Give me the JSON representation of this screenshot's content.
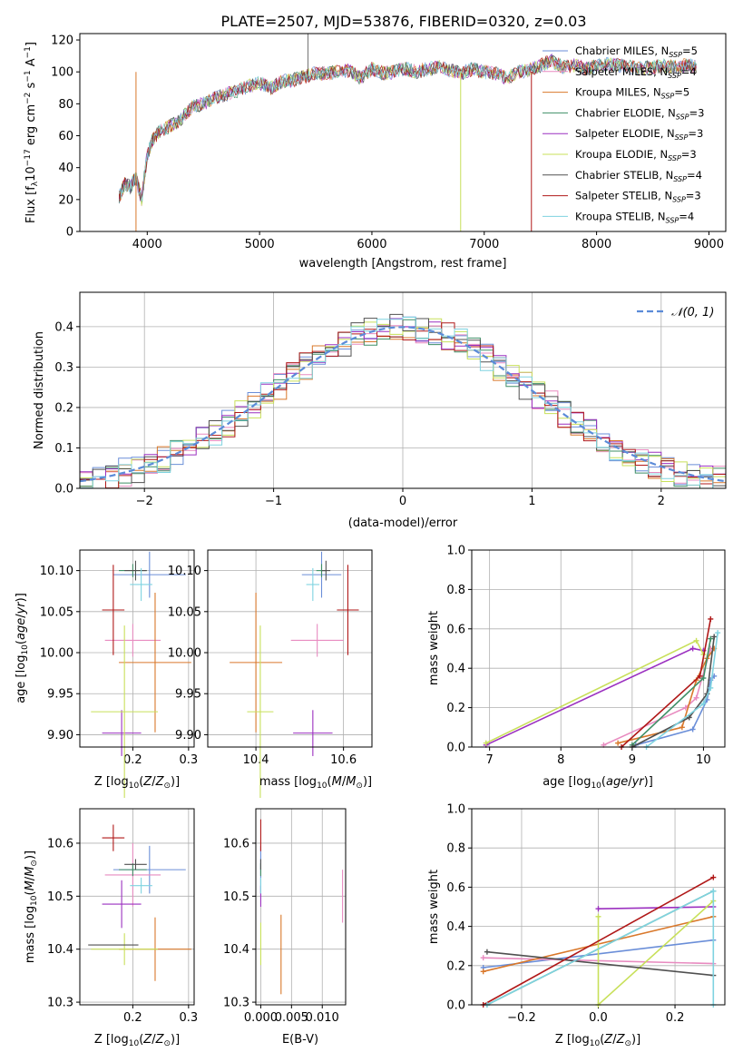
{
  "figure": {
    "title": "PLATE=2507, MJD=53876, FIBERID=0320, z=0.03"
  },
  "chart_data": [
    {
      "type": "line",
      "xlabel": "wavelength [Angstrom, rest frame]",
      "ylabel": "Flux [f_λ10^-17 erg cm^-2 s^-1 A^-1]",
      "xlim": [
        3400,
        9150
      ],
      "ylim": [
        0,
        124
      ],
      "xticks": [
        4000,
        5000,
        6000,
        7000,
        8000,
        9000
      ],
      "yticks": [
        0,
        20,
        40,
        60,
        80,
        100,
        120
      ],
      "legend_position": "top-right",
      "series": [
        {
          "name": "Chabrier MILES, N_SSP=5",
          "color": "#6a8ed8"
        },
        {
          "name": "Salpeter MILES, N_SSP=4",
          "color": "#e88bc0"
        },
        {
          "name": "Kroupa MILES, N_SSP=5",
          "color": "#d9782b"
        },
        {
          "name": "Chabrier ELODIE, N_SSP=3",
          "color": "#3f8f66"
        },
        {
          "name": "Salpeter ELODIE, N_SSP=3",
          "color": "#9b30c0"
        },
        {
          "name": "Kroupa ELODIE, N_SSP=3",
          "color": "#c8e05a"
        },
        {
          "name": "Chabrier STELIB, N_SSP=4",
          "color": "#505050"
        },
        {
          "name": "Salpeter STELIB, N_SSP=3",
          "color": "#b01818"
        },
        {
          "name": "Kroupa STELIB, N_SSP=4",
          "color": "#7fd3e0"
        }
      ],
      "x": [
        3750,
        3800,
        3850,
        3900,
        3950,
        4000,
        4050,
        4100,
        4200,
        4300,
        4400,
        4500,
        4600,
        4700,
        4800,
        4900,
        5000,
        5100,
        5200,
        5300,
        5400,
        5500,
        5600,
        5700,
        5800,
        5900,
        6000,
        6100,
        6200,
        6300,
        6400,
        6500,
        6600,
        6700,
        6800,
        6900,
        7000,
        7100,
        7200,
        7300,
        7400,
        7500,
        7600,
        7700,
        7800,
        7900,
        8000,
        8100,
        8200,
        8300,
        8400,
        8500,
        8600,
        8700,
        8800,
        8900
      ],
      "y": [
        22,
        30,
        28,
        34,
        20,
        48,
        58,
        62,
        66,
        70,
        78,
        80,
        84,
        86,
        88,
        91,
        93,
        90,
        94,
        95,
        97,
        99,
        99,
        100,
        101,
        96,
        102,
        99,
        100,
        102,
        100,
        102,
        103,
        101,
        99,
        102,
        100,
        99,
        96,
        100,
        101,
        104,
        107,
        103,
        104,
        102,
        104,
        105,
        104,
        103,
        102,
        103,
        104,
        103,
        104,
        103
      ],
      "drops": [
        {
          "series": "Kroupa ELODIE, N_SSP=3",
          "x": 6790,
          "y": 0
        },
        {
          "series": "Salpeter STELIB, N_SSP=3",
          "x": 7420,
          "y": 0
        },
        {
          "series": "Kroupa MILES, N_SSP=5",
          "x": 3900,
          "y": 0
        }
      ]
    },
    {
      "type": "bar",
      "xlabel": "(data-model)/error",
      "ylabel": "Normed distribution",
      "xlim": [
        -2.5,
        2.5
      ],
      "ylim": [
        0,
        0.485
      ],
      "xticks": [
        -2,
        -1,
        0,
        1,
        2
      ],
      "yticks": [
        0.0,
        0.1,
        0.2,
        0.3,
        0.4
      ],
      "grid": true,
      "legend_position": "top-right",
      "legend": "𝒩(0, 1)",
      "bins": [
        -2.5,
        -2.4,
        -2.3,
        -2.2,
        -2.1,
        -2.0,
        -1.9,
        -1.8,
        -1.7,
        -1.6,
        -1.5,
        -1.4,
        -1.3,
        -1.2,
        -1.1,
        -1.0,
        -0.9,
        -0.8,
        -0.7,
        -0.6,
        -0.5,
        -0.4,
        -0.3,
        -0.2,
        -0.1,
        0.0,
        0.1,
        0.2,
        0.3,
        0.4,
        0.5,
        0.6,
        0.7,
        0.8,
        0.9,
        1.0,
        1.1,
        1.2,
        1.3,
        1.4,
        1.5,
        1.6,
        1.7,
        1.8,
        1.9,
        2.0,
        2.1,
        2.2,
        2.3,
        2.4
      ],
      "normal_curve": {
        "mean": 0,
        "std": 1,
        "color": "#5b8bd8"
      }
    },
    {
      "type": "scatter",
      "xlabel": "Z [log10(Z/Z⊙)]",
      "ylabel": "age  [log10(age/yr)]",
      "xlim": [
        0.105,
        0.31
      ],
      "ylim": [
        9.885,
        10.125
      ],
      "xticks": [
        0.2,
        0.3
      ],
      "yticks": [
        9.9,
        9.95,
        10.0,
        10.05,
        10.1
      ],
      "points": [
        {
          "x": 0.23,
          "y": 10.095,
          "xerr": 0.065,
          "yerr": 0.028,
          "color": "#6a8ed8"
        },
        {
          "x": 0.2,
          "y": 10.015,
          "xerr": 0.05,
          "yerr": 0.02,
          "color": "#e88bc0"
        },
        {
          "x": 0.24,
          "y": 9.988,
          "xerr": 0.065,
          "yerr": 0.085,
          "color": "#d9782b"
        },
        {
          "x": 0.2,
          "y": 10.1,
          "xerr": 0.025,
          "yerr": 0.008,
          "color": "#3f8f66"
        },
        {
          "x": 0.18,
          "y": 9.902,
          "xerr": 0.035,
          "yerr": 0.028,
          "color": "#9b30c0"
        },
        {
          "x": 0.185,
          "y": 9.928,
          "xerr": 0.06,
          "yerr": 0.105,
          "color": "#c8e05a"
        },
        {
          "x": 0.205,
          "y": 10.1,
          "xerr": 0.02,
          "yerr": 0.012,
          "color": "#505050"
        },
        {
          "x": 0.165,
          "y": 10.052,
          "xerr": 0.02,
          "yerr": 0.055,
          "color": "#b01818"
        },
        {
          "x": 0.215,
          "y": 10.083,
          "xerr": 0.02,
          "yerr": 0.02,
          "color": "#7fd3e0"
        }
      ]
    },
    {
      "type": "scatter",
      "xlabel": "mass [log10(M/M⊙)]",
      "ylabel": "",
      "xlim": [
        10.29,
        10.665
      ],
      "ylim": [
        9.885,
        10.125
      ],
      "xticks": [
        10.4,
        10.6
      ],
      "yticks": [
        9.9,
        9.95,
        10.0,
        10.05,
        10.1
      ],
      "points": [
        {
          "x": 10.55,
          "y": 10.095,
          "xerr": 0.045,
          "yerr": 0.028,
          "color": "#6a8ed8"
        },
        {
          "x": 10.54,
          "y": 10.015,
          "xerr": 0.06,
          "yerr": 0.02,
          "color": "#e88bc0"
        },
        {
          "x": 10.4,
          "y": 9.988,
          "xerr": 0.06,
          "yerr": 0.085,
          "color": "#d9782b"
        },
        {
          "x": 10.55,
          "y": 10.1,
          "xerr": 0.012,
          "yerr": 0.008,
          "color": "#3f8f66"
        },
        {
          "x": 10.53,
          "y": 9.902,
          "xerr": 0.045,
          "yerr": 0.028,
          "color": "#9b30c0"
        },
        {
          "x": 10.41,
          "y": 9.928,
          "xerr": 0.03,
          "yerr": 0.105,
          "color": "#c8e05a"
        },
        {
          "x": 10.56,
          "y": 10.1,
          "xerr": 0.01,
          "yerr": 0.012,
          "color": "#505050"
        },
        {
          "x": 10.61,
          "y": 10.052,
          "xerr": 0.025,
          "yerr": 0.055,
          "color": "#b01818"
        },
        {
          "x": 10.53,
          "y": 10.083,
          "xerr": 0.015,
          "yerr": 0.02,
          "color": "#7fd3e0"
        }
      ]
    },
    {
      "type": "line",
      "xlabel": "age  [log10(age/yr)]",
      "ylabel": "mass weight",
      "xlim": [
        6.75,
        10.3
      ],
      "ylim": [
        0,
        1.0
      ],
      "xticks": [
        7,
        8,
        9,
        10
      ],
      "yticks": [
        0.0,
        0.2,
        0.4,
        0.6,
        0.8,
        1.0
      ],
      "grid": true,
      "series": [
        {
          "name": "Chabrier MILES, N_SSP=5",
          "color": "#6a8ed8",
          "x": [
            9.05,
            9.85,
            10.05,
            10.1,
            10.15
          ],
          "y": [
            0.01,
            0.09,
            0.24,
            0.34,
            0.36
          ]
        },
        {
          "name": "Salpeter MILES, N_SSP=4",
          "color": "#e88bc0",
          "x": [
            8.6,
            9.75,
            9.9,
            10.1
          ],
          "y": [
            0.01,
            0.2,
            0.25,
            0.5
          ]
        },
        {
          "name": "Kroupa MILES, N_SSP=5",
          "color": "#d9782b",
          "x": [
            8.8,
            9.7,
            9.9,
            10.05,
            10.15
          ],
          "y": [
            0.02,
            0.1,
            0.34,
            0.45,
            0.5
          ]
        },
        {
          "name": "Chabrier ELODIE, N_SSP=3",
          "color": "#3f8f66",
          "x": [
            9.0,
            10.0,
            10.1
          ],
          "y": [
            0.01,
            0.35,
            0.55
          ]
        },
        {
          "name": "Salpeter ELODIE, N_SSP=3",
          "color": "#9b30c0",
          "x": [
            6.95,
            9.85,
            10.0
          ],
          "y": [
            0.01,
            0.5,
            0.49
          ]
        },
        {
          "name": "Kroupa ELODIE, N_SSP=3",
          "color": "#c8e05a",
          "x": [
            6.95,
            9.9,
            10.0
          ],
          "y": [
            0.02,
            0.54,
            0.47
          ]
        },
        {
          "name": "Chabrier STELIB, N_SSP=4",
          "color": "#505050",
          "x": [
            9.0,
            9.8,
            10.05,
            10.15
          ],
          "y": [
            0.0,
            0.15,
            0.27,
            0.56
          ]
        },
        {
          "name": "Salpeter STELIB, N_SSP=3",
          "color": "#b01818",
          "x": [
            8.85,
            9.95,
            10.1
          ],
          "y": [
            0.0,
            0.36,
            0.65
          ]
        },
        {
          "name": "Kroupa STELIB, N_SSP=4",
          "color": "#7fd3e0",
          "x": [
            9.2,
            10.0,
            10.1,
            10.2
          ],
          "y": [
            0.0,
            0.22,
            0.3,
            0.58
          ]
        }
      ]
    },
    {
      "type": "scatter",
      "xlabel": "Z [log10(Z/Z⊙)]",
      "ylabel": "mass [log10(M/M⊙)]",
      "xlim": [
        0.105,
        0.31
      ],
      "ylim": [
        10.295,
        10.665
      ],
      "xticks": [
        0.2,
        0.3
      ],
      "yticks": [
        10.3,
        10.4,
        10.5,
        10.6
      ],
      "points": [
        {
          "x": 0.23,
          "y": 10.55,
          "xerr": 0.065,
          "yerr": 0.045,
          "color": "#6a8ed8"
        },
        {
          "x": 0.2,
          "y": 10.54,
          "xerr": 0.05,
          "yerr": 0.06,
          "color": "#e88bc0"
        },
        {
          "x": 0.24,
          "y": 10.4,
          "xerr": 0.065,
          "yerr": 0.06,
          "color": "#d9782b"
        },
        {
          "x": 0.2,
          "y": 10.55,
          "xerr": 0.025,
          "yerr": 0.012,
          "color": "#3f8f66"
        },
        {
          "x": 0.18,
          "y": 10.485,
          "xerr": 0.035,
          "yerr": 0.045,
          "color": "#9b30c0"
        },
        {
          "x": 0.185,
          "y": 10.4,
          "xerr": 0.06,
          "yerr": 0.03,
          "color": "#c8e05a"
        },
        {
          "x": 0.205,
          "y": 10.56,
          "xerr": 0.02,
          "yerr": 0.01,
          "color": "#505050"
        },
        {
          "x": 0.165,
          "y": 10.61,
          "xerr": 0.02,
          "yerr": 0.025,
          "color": "#b01818"
        },
        {
          "x": 0.215,
          "y": 10.52,
          "xerr": 0.02,
          "yerr": 0.015,
          "color": "#7fd3e0"
        },
        {
          "x": 0.165,
          "y": 10.408,
          "xerr": 0.045,
          "yerr": 0.0,
          "color": "#505050"
        }
      ]
    },
    {
      "type": "scatter",
      "xlabel": "E(B-V)",
      "ylabel": "",
      "xlim": [
        -0.0008,
        0.0138
      ],
      "ylim": [
        10.295,
        10.665
      ],
      "xticks": [
        0.0,
        0.005,
        0.01
      ],
      "xticklabels": [
        "0.000",
        "0.005",
        "0.010"
      ],
      "yticks": [
        10.3,
        10.4,
        10.5,
        10.6
      ],
      "points": [
        {
          "x": 0.0,
          "y": 10.55,
          "xerr": 0.0,
          "yerr": 0.045,
          "color": "#6a8ed8"
        },
        {
          "x": 0.0133,
          "y": 10.5,
          "xerr": 0.0,
          "yerr": 0.05,
          "color": "#e88bc0"
        },
        {
          "x": 0.0033,
          "y": 10.39,
          "xerr": 0.0,
          "yerr": 0.075,
          "color": "#d9782b"
        },
        {
          "x": 0.0,
          "y": 10.55,
          "xerr": 0.0,
          "yerr": 0.012,
          "color": "#3f8f66"
        },
        {
          "x": 0.0,
          "y": 10.5,
          "xerr": 0.0,
          "yerr": 0.02,
          "color": "#9b30c0"
        },
        {
          "x": 0.0,
          "y": 10.41,
          "xerr": 0.0,
          "yerr": 0.04,
          "color": "#c8e05a"
        },
        {
          "x": 0.0,
          "y": 10.56,
          "xerr": 0.0,
          "yerr": 0.01,
          "color": "#505050"
        },
        {
          "x": 0.0,
          "y": 10.615,
          "xerr": 0.0,
          "yerr": 0.03,
          "color": "#b01818"
        },
        {
          "x": 0.0,
          "y": 10.52,
          "xerr": 0.0,
          "yerr": 0.015,
          "color": "#7fd3e0"
        }
      ]
    },
    {
      "type": "line",
      "xlabel": "Z [log10(Z/Z⊙)]",
      "ylabel": "mass weight",
      "xlim": [
        -0.33,
        0.33
      ],
      "ylim": [
        0,
        1.0
      ],
      "xticks": [
        -0.2,
        0.0,
        0.2
      ],
      "yticks": [
        0.0,
        0.2,
        0.4,
        0.6,
        0.8,
        1.0
      ],
      "grid": true,
      "series": [
        {
          "name": "Chabrier MILES, N_SSP=5",
          "color": "#6a8ed8",
          "x": [
            -0.3,
            0.3
          ],
          "y": [
            0.19,
            0.33
          ]
        },
        {
          "name": "Salpeter MILES, N_SSP=4",
          "color": "#e88bc0",
          "x": [
            -0.3,
            0.3
          ],
          "y": [
            0.24,
            0.21
          ]
        },
        {
          "name": "Kroupa MILES, N_SSP=5",
          "color": "#d9782b",
          "x": [
            -0.3,
            0.3
          ],
          "y": [
            0.17,
            0.45
          ]
        },
        {
          "name": "Chabrier ELODIE, N_SSP=3",
          "color": "#3f8f66",
          "x": [
            -0.29,
            0.3
          ],
          "y": [
            0.0,
            0.58
          ]
        },
        {
          "name": "Salpeter ELODIE, N_SSP=3",
          "color": "#9b30c0",
          "x": [
            0.0,
            0.3
          ],
          "y": [
            0.49,
            0.5
          ]
        },
        {
          "name": "Kroupa ELODIE, N_SSP=3",
          "color": "#c8e05a",
          "x": [
            0.0,
            0.0,
            0.3
          ],
          "y": [
            0.45,
            0.0,
            0.53
          ]
        },
        {
          "name": "Chabrier STELIB, N_SSP=4",
          "color": "#505050",
          "x": [
            -0.29,
            0.3
          ],
          "y": [
            0.27,
            0.15
          ]
        },
        {
          "name": "Salpeter STELIB, N_SSP=3",
          "color": "#b01818",
          "x": [
            -0.3,
            0.3
          ],
          "y": [
            0.0,
            0.65
          ]
        },
        {
          "name": "Kroupa STELIB, N_SSP=4",
          "color": "#7fd3e0",
          "x": [
            -0.29,
            0.3,
            0.3
          ],
          "y": [
            0.0,
            0.58,
            0.0
          ]
        }
      ]
    }
  ]
}
